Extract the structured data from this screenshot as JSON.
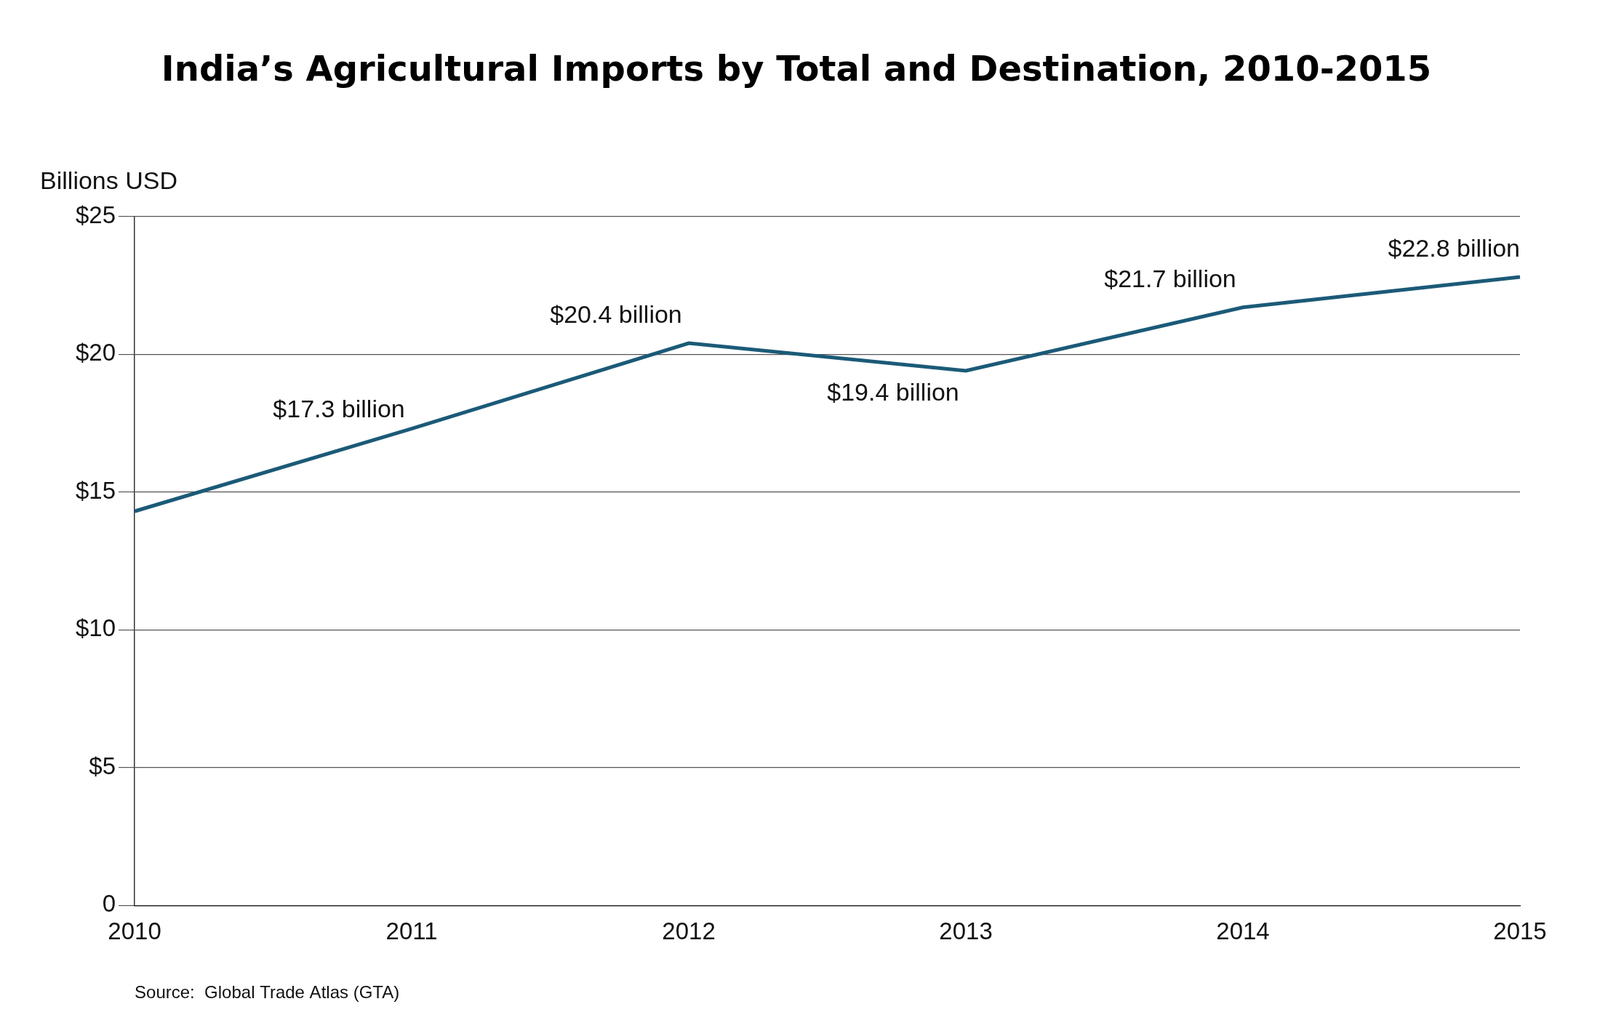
{
  "chart_data": {
    "type": "line",
    "title": "India’s Agricultural Imports by Total and Destination, 2010-2015",
    "y_label": "Billions USD",
    "source": "Source:  Global Trade Atlas (GTA)",
    "categories": [
      "2010",
      "2011",
      "2012",
      "2013",
      "2014",
      "2015"
    ],
    "values": [
      14.3,
      17.3,
      20.4,
      19.4,
      21.7,
      22.8
    ],
    "value_labels": [
      null,
      "$17.3 billion",
      "$20.4 billion",
      "$19.4 billion",
      "$21.7 billion",
      "$22.8 billion"
    ],
    "data_labels": true,
    "color": "#1b5a78",
    "ylim": [
      0,
      25
    ],
    "yticks": [
      0,
      {
        "value": 5,
        "label": "$5"
      },
      {
        "value": 10,
        "label": "$10"
      },
      {
        "value": 15,
        "label": "$15"
      },
      {
        "value": 20,
        "label": "$20"
      },
      {
        "value": 25,
        "label": "$25"
      }
    ],
    "grid": true
  }
}
